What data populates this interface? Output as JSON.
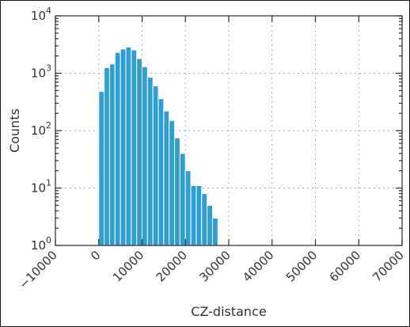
{
  "chart_data": {
    "type": "bar",
    "title": "",
    "xlabel": "CZ-distance",
    "ylabel": "Counts",
    "x_scale": "linear",
    "y_scale": "log",
    "xlim": [
      -10000,
      70000
    ],
    "ylim": [
      1,
      10000
    ],
    "grid": true,
    "bar_color": "#2f9fd2",
    "x_ticks": [
      {
        "value": -10000,
        "label": "−10000"
      },
      {
        "value": 0,
        "label": "0"
      },
      {
        "value": 10000,
        "label": "10000"
      },
      {
        "value": 20000,
        "label": "20000"
      },
      {
        "value": 30000,
        "label": "30000"
      },
      {
        "value": 40000,
        "label": "40000"
      },
      {
        "value": 50000,
        "label": "50000"
      },
      {
        "value": 60000,
        "label": "60000"
      },
      {
        "value": 70000,
        "label": "70000"
      }
    ],
    "y_ticks": [
      {
        "value": 1,
        "base": "10",
        "exp": "0"
      },
      {
        "value": 10,
        "base": "10",
        "exp": "1"
      },
      {
        "value": 100,
        "base": "10",
        "exp": "2"
      },
      {
        "value": 1000,
        "base": "10",
        "exp": "3"
      },
      {
        "value": 10000,
        "base": "10",
        "exp": "4"
      }
    ],
    "bin_edges": [
      0,
      1250,
      2500,
      3750,
      5000,
      6250,
      7500,
      8750,
      10000,
      11250,
      12500,
      13750,
      15000,
      16250,
      17500,
      18750,
      20000,
      21250,
      22500,
      23750,
      25000,
      26250,
      27500
    ],
    "values": [
      480,
      1250,
      1450,
      2300,
      2650,
      2850,
      2550,
      1800,
      1300,
      850,
      600,
      360,
      220,
      150,
      75,
      40,
      20,
      11,
      11,
      8,
      5,
      3
    ]
  }
}
